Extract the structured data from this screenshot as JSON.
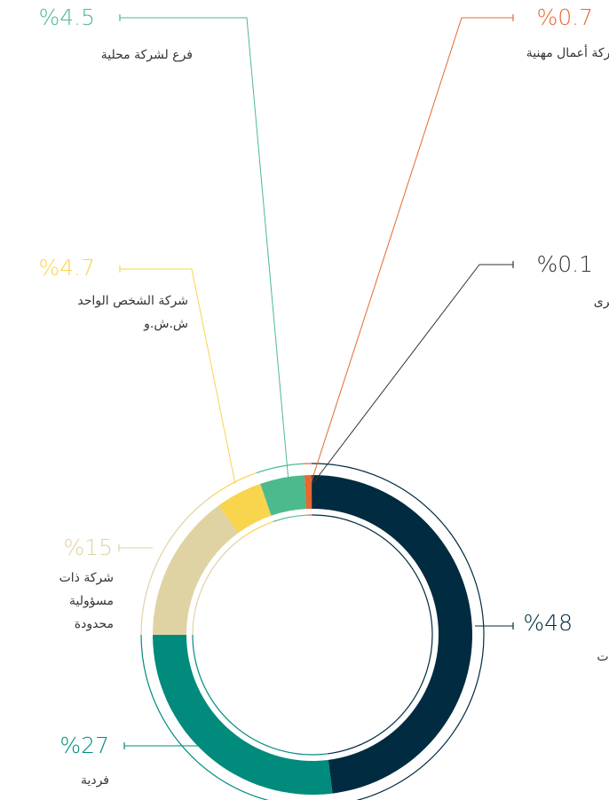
{
  "chart_data": {
    "type": "donut",
    "categories": [
      "وكيل خدمات",
      "فردية",
      "شركة ذات مسؤولية محدودة",
      "شركة الشخص الواحد ش.ش.و",
      "فرع لشركة محلية",
      "شركة أعمال مهنية",
      "أخرى"
    ],
    "values": [
      48,
      27,
      15,
      4.7,
      4.5,
      0.7,
      0.1
    ],
    "value_labels": [
      "%48",
      "%27",
      "%15",
      "%4.7",
      "%4.5",
      "%0.7",
      "%0.1"
    ],
    "colors": [
      "#012b40",
      "#008b7d",
      "#dfd3a4",
      "#f9d44d",
      "#4dba8e",
      "#e5692f",
      "#333333"
    ],
    "label_colors": [
      "#012b40",
      "#008b7d",
      "#dfd3a4",
      "#f9d44d",
      "#4dba8e",
      "#e5692f",
      "#333333"
    ]
  }
}
